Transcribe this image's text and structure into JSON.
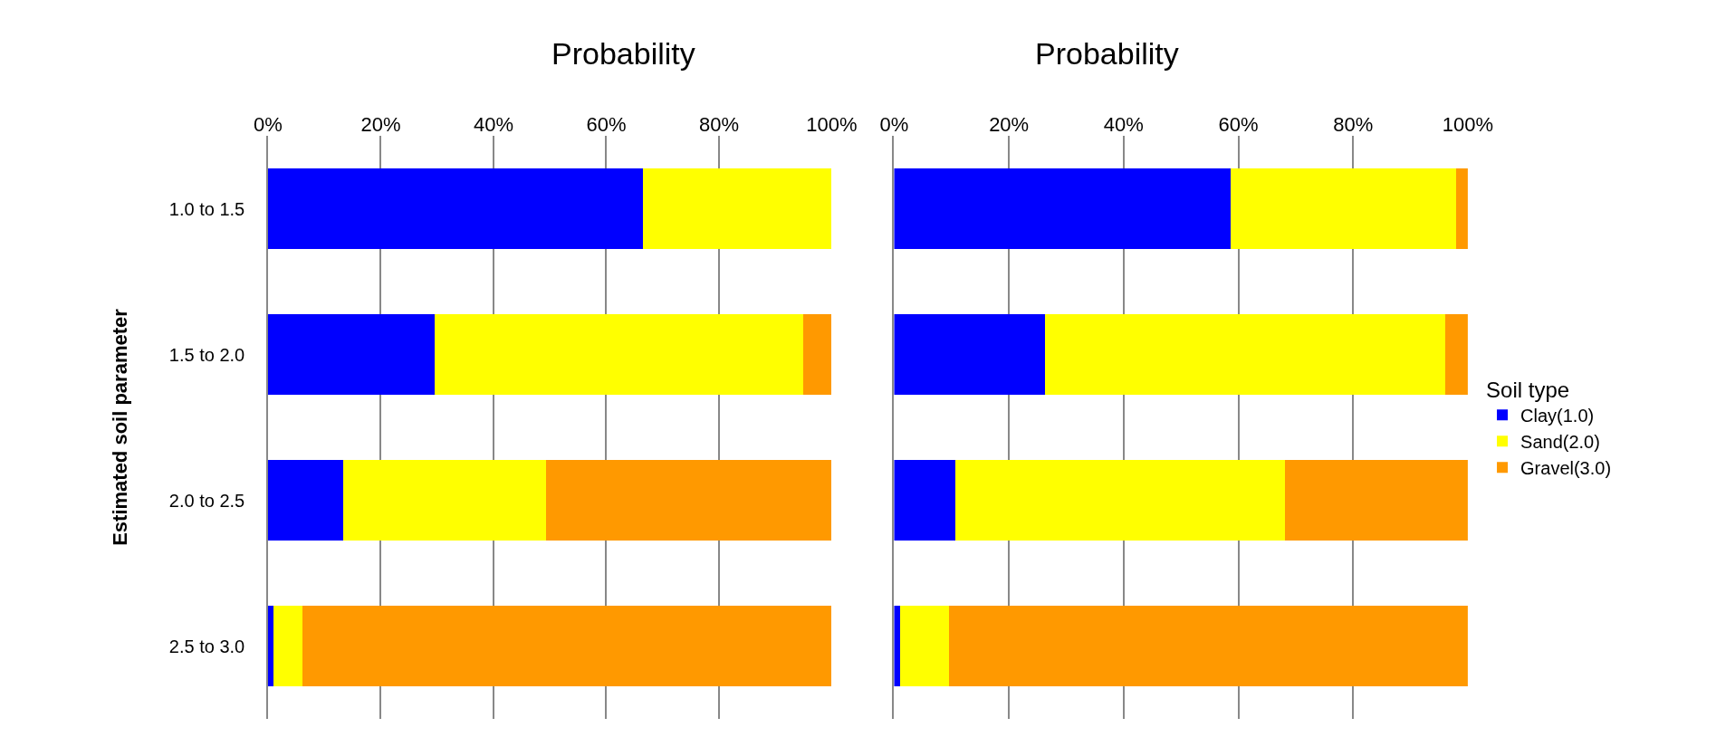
{
  "chart_data": [
    {
      "type": "bar",
      "orientation": "horizontal",
      "stacked": true,
      "title": "Probability",
      "ylabel": "Estimated soil parameter",
      "legend": "right",
      "legend_title": "Soil type",
      "categories": [
        "1.0 to 1.5",
        "1.5 to 2.0",
        "2.0 to 2.5",
        "2.5 to 3.0"
      ],
      "series": [
        {
          "name": "Clay(1.0)",
          "color": "#0000ff",
          "values": [
            66.5,
            29.6,
            13.4,
            0.9
          ]
        },
        {
          "name": "Sand(2.0)",
          "color": "#ffff00",
          "values": [
            33.5,
            65.4,
            35.9,
            5.2
          ]
        },
        {
          "name": "Gravel(3.0)",
          "color": "#ff9900",
          "values": [
            0,
            5.0,
            50.7,
            93.9
          ]
        }
      ],
      "xlim": [
        0,
        100
      ],
      "xticks": [
        {
          "value": 0,
          "label": "0%"
        },
        {
          "value": 20,
          "label": "20%"
        },
        {
          "value": 40,
          "label": "40%"
        },
        {
          "value": 60,
          "label": "60%"
        },
        {
          "value": 80,
          "label": "80%"
        },
        {
          "value": 100,
          "label": "100%"
        }
      ],
      "grid": "x"
    },
    {
      "type": "bar",
      "orientation": "horizontal",
      "stacked": true,
      "title": "Probability",
      "tick_labels": "x",
      "categories": [
        "1.0 to 1.5",
        "1.5 to 2.0",
        "2.0 to 2.5",
        "2.5 to 3.0"
      ],
      "series": [
        {
          "color": "#0000ff",
          "values": [
            58.6,
            26.3,
            10.6,
            1.1
          ]
        },
        {
          "color": "#ffff00",
          "values": [
            39.4,
            69.7,
            57.6,
            8.4
          ]
        },
        {
          "color": "#ff9900",
          "values": [
            2.0,
            4.0,
            31.8,
            90.5
          ]
        }
      ],
      "xlim": [
        0,
        100
      ],
      "xticks": [
        {
          "value": 0,
          "label": "0%"
        },
        {
          "value": 20,
          "label": "20%"
        },
        {
          "value": 40,
          "label": "40%"
        },
        {
          "value": 60,
          "label": "60%"
        },
        {
          "value": 80,
          "label": "80%"
        },
        {
          "value": 100,
          "label": "100%"
        }
      ],
      "grid": "x"
    }
  ]
}
